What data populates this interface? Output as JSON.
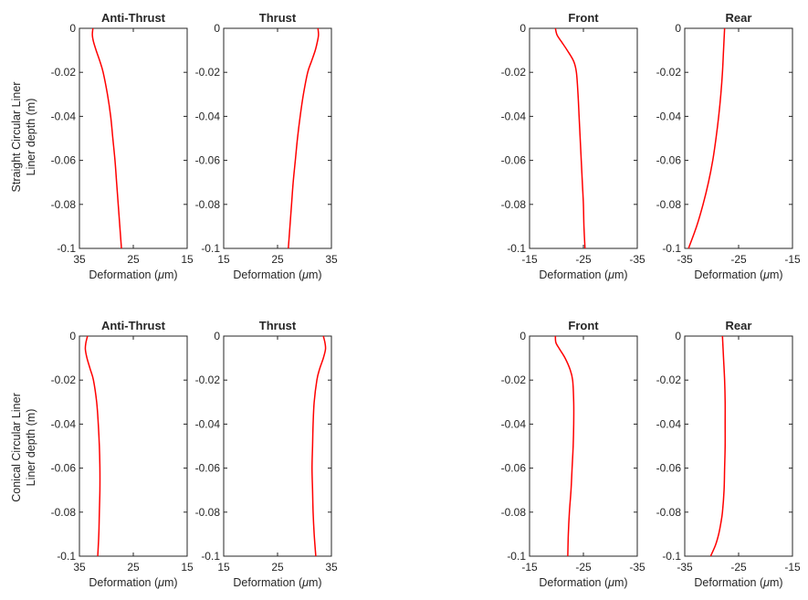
{
  "figure": {
    "row_labels": [
      [
        "Straight Circular Liner",
        "Liner depth (m)"
      ],
      [
        "Conical Circular Liner",
        "Liner depth (m)"
      ]
    ],
    "x_label_text": "Deformation (",
    "x_label_symbol": "μ",
    "x_label_unit": "m)"
  },
  "colors": {
    "line": "#ff0000",
    "axis": "#262626",
    "background": "#ffffff"
  },
  "chart_data": [
    {
      "type": "line",
      "title": "Anti-Thrust",
      "row": 0,
      "col": 0,
      "xlim": [
        35,
        15
      ],
      "x_reversed": true,
      "ylim": [
        -0.1,
        0
      ],
      "xticks": [
        "35",
        "25",
        "15"
      ],
      "yticks": [
        "0",
        "-0.02",
        "-0.04",
        "-0.06",
        "-0.08",
        "-0.1"
      ],
      "xlabel": "Deformation (μm)",
      "ylabel": "Liner depth (m)",
      "series": [
        {
          "y": [
            0,
            -0.003,
            -0.006,
            -0.01,
            -0.015,
            -0.02,
            -0.03,
            -0.04,
            -0.05,
            -0.06,
            -0.07,
            -0.08,
            -0.09,
            -0.1
          ],
          "x": [
            32.5,
            32.6,
            32.4,
            31.9,
            31.2,
            30.6,
            29.8,
            29.2,
            28.8,
            28.4,
            28.1,
            27.8,
            27.5,
            27.2
          ]
        }
      ]
    },
    {
      "type": "line",
      "title": "Thrust",
      "row": 0,
      "col": 1,
      "xlim": [
        15,
        35
      ],
      "x_reversed": false,
      "ylim": [
        -0.1,
        0
      ],
      "xticks": [
        "15",
        "25",
        "35"
      ],
      "yticks": [
        "0",
        "-0.02",
        "-0.04",
        "-0.06",
        "-0.08",
        "-0.1"
      ],
      "xlabel": "Deformation (μm)",
      "ylabel": "",
      "series": [
        {
          "y": [
            0,
            -0.003,
            -0.006,
            -0.01,
            -0.015,
            -0.02,
            -0.03,
            -0.04,
            -0.05,
            -0.06,
            -0.07,
            -0.08,
            -0.09,
            -0.1
          ],
          "x": [
            32.5,
            32.6,
            32.4,
            32.0,
            31.3,
            30.6,
            29.8,
            29.2,
            28.7,
            28.3,
            27.9,
            27.6,
            27.3,
            27.0
          ]
        }
      ]
    },
    {
      "type": "line",
      "title": "Front",
      "row": 0,
      "col": 2,
      "xlim": [
        -15,
        -35
      ],
      "x_reversed": true,
      "ylim": [
        -0.1,
        0
      ],
      "xticks": [
        "-15",
        "-25",
        "-35"
      ],
      "yticks": [
        "0",
        "-0.02",
        "-0.04",
        "-0.06",
        "-0.08",
        "-0.1"
      ],
      "xlabel": "Deformation (μm)",
      "ylabel": "",
      "series": [
        {
          "y": [
            0,
            -0.003,
            -0.006,
            -0.01,
            -0.015,
            -0.02,
            -0.03,
            -0.04,
            -0.05,
            -0.06,
            -0.07,
            -0.08,
            -0.09,
            -0.1
          ],
          "x": [
            -19.8,
            -20.1,
            -20.9,
            -22.0,
            -23.2,
            -23.7,
            -24.0,
            -24.2,
            -24.4,
            -24.6,
            -24.8,
            -25.0,
            -25.1,
            -25.3
          ]
        }
      ]
    },
    {
      "type": "line",
      "title": "Rear",
      "row": 0,
      "col": 3,
      "xlim": [
        -35,
        -15
      ],
      "x_reversed": false,
      "ylim": [
        -0.1,
        0
      ],
      "xticks": [
        "-35",
        "-25",
        "-15"
      ],
      "yticks": [
        "0",
        "-0.02",
        "-0.04",
        "-0.06",
        "-0.08",
        "-0.1"
      ],
      "xlabel": "Deformation (μm)",
      "ylabel": "",
      "series": [
        {
          "y": [
            0,
            -0.01,
            -0.02,
            -0.03,
            -0.04,
            -0.05,
            -0.06,
            -0.07,
            -0.08,
            -0.09,
            -0.1
          ],
          "x": [
            -27.6,
            -27.8,
            -28.0,
            -28.3,
            -28.7,
            -29.2,
            -29.8,
            -30.6,
            -31.6,
            -32.8,
            -34.3
          ]
        }
      ]
    },
    {
      "type": "line",
      "title": "Anti-Thrust",
      "row": 1,
      "col": 0,
      "xlim": [
        35,
        15
      ],
      "x_reversed": true,
      "ylim": [
        -0.1,
        0
      ],
      "xticks": [
        "35",
        "25",
        "15"
      ],
      "yticks": [
        "0",
        "-0.02",
        "-0.04",
        "-0.06",
        "-0.08",
        "-0.1"
      ],
      "xlabel": "Deformation (μm)",
      "ylabel": "Liner depth (m)",
      "series": [
        {
          "y": [
            0,
            -0.003,
            -0.006,
            -0.01,
            -0.015,
            -0.02,
            -0.03,
            -0.04,
            -0.05,
            -0.06,
            -0.07,
            -0.08,
            -0.09,
            -0.1
          ],
          "x": [
            33.5,
            33.8,
            33.9,
            33.6,
            33.0,
            32.4,
            31.8,
            31.5,
            31.3,
            31.2,
            31.2,
            31.3,
            31.4,
            31.6
          ]
        }
      ]
    },
    {
      "type": "line",
      "title": "Thrust",
      "row": 1,
      "col": 1,
      "xlim": [
        15,
        35
      ],
      "x_reversed": false,
      "ylim": [
        -0.1,
        0
      ],
      "xticks": [
        "15",
        "25",
        "35"
      ],
      "yticks": [
        "0",
        "-0.02",
        "-0.04",
        "-0.06",
        "-0.08",
        "-0.1"
      ],
      "xlabel": "Deformation (μm)",
      "ylabel": "",
      "series": [
        {
          "y": [
            0,
            -0.003,
            -0.006,
            -0.01,
            -0.015,
            -0.02,
            -0.03,
            -0.04,
            -0.05,
            -0.06,
            -0.07,
            -0.08,
            -0.09,
            -0.1
          ],
          "x": [
            33.5,
            33.8,
            33.9,
            33.5,
            32.8,
            32.3,
            31.8,
            31.6,
            31.5,
            31.4,
            31.5,
            31.6,
            31.8,
            32.1
          ]
        }
      ]
    },
    {
      "type": "line",
      "title": "Front",
      "row": 1,
      "col": 2,
      "xlim": [
        -15,
        -35
      ],
      "x_reversed": true,
      "ylim": [
        -0.1,
        0
      ],
      "xticks": [
        "-15",
        "-25",
        "-35"
      ],
      "yticks": [
        "0",
        "-0.02",
        "-0.04",
        "-0.06",
        "-0.08",
        "-0.1"
      ],
      "xlabel": "Deformation (μm)",
      "ylabel": "",
      "series": [
        {
          "y": [
            0,
            -0.003,
            -0.006,
            -0.01,
            -0.015,
            -0.02,
            -0.03,
            -0.04,
            -0.05,
            -0.06,
            -0.07,
            -0.08,
            -0.09,
            -0.1
          ],
          "x": [
            -19.8,
            -19.9,
            -20.6,
            -21.6,
            -22.5,
            -23.0,
            -23.2,
            -23.2,
            -23.1,
            -22.9,
            -22.7,
            -22.4,
            -22.2,
            -22.1
          ]
        }
      ]
    },
    {
      "type": "line",
      "title": "Rear",
      "row": 1,
      "col": 3,
      "xlim": [
        -35,
        -15
      ],
      "x_reversed": false,
      "ylim": [
        -0.1,
        0
      ],
      "xticks": [
        "-35",
        "-25",
        "-15"
      ],
      "yticks": [
        "0",
        "-0.02",
        "-0.04",
        "-0.06",
        "-0.08",
        "-0.1"
      ],
      "xlabel": "Deformation (μm)",
      "ylabel": "",
      "series": [
        {
          "y": [
            0,
            -0.01,
            -0.02,
            -0.03,
            -0.04,
            -0.05,
            -0.06,
            -0.07,
            -0.08,
            -0.085,
            -0.09,
            -0.095,
            -0.1
          ],
          "x": [
            -28.0,
            -27.8,
            -27.6,
            -27.5,
            -27.5,
            -27.5,
            -27.6,
            -27.7,
            -28.0,
            -28.3,
            -28.7,
            -29.3,
            -30.2
          ]
        }
      ]
    }
  ]
}
